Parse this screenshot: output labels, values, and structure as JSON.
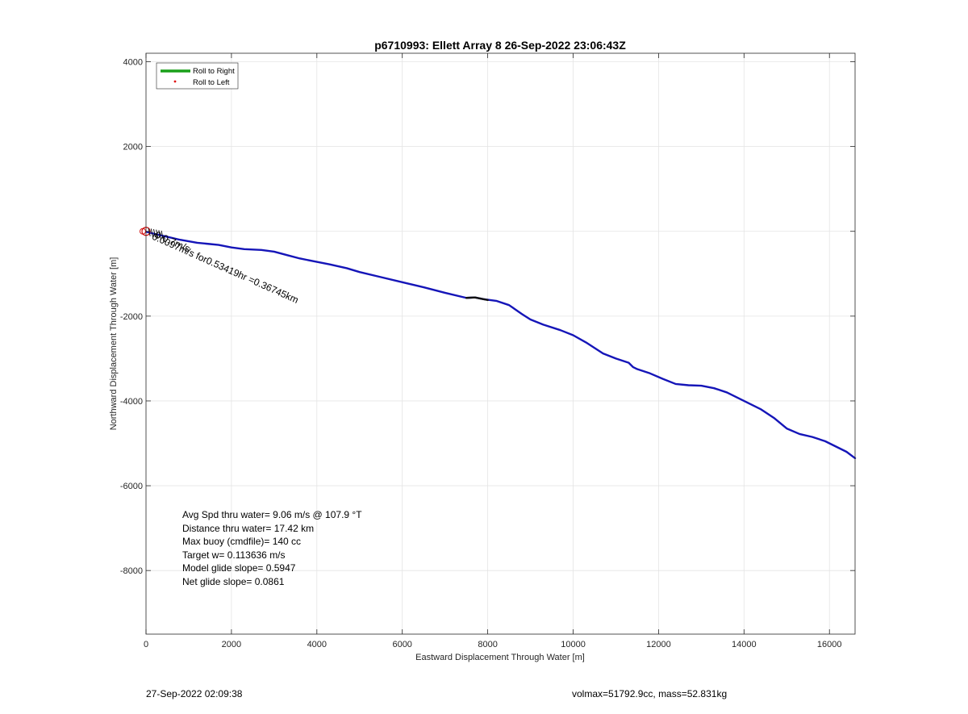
{
  "chart_data": {
    "type": "line",
    "title": "p6710993: Ellett Array 8 26-Sep-2022 23:06:43Z",
    "xlabel": "Eastward Displacement Through Water [m]",
    "ylabel": "Northward Displacement Through Water [m]",
    "xlim": [
      0,
      16600
    ],
    "ylim": [
      -9500,
      4200
    ],
    "xticks": [
      0,
      2000,
      4000,
      6000,
      8000,
      10000,
      12000,
      14000,
      16000
    ],
    "yticks": [
      4000,
      2000,
      0,
      -2000,
      -4000,
      -6000,
      -8000
    ],
    "ytick_labels": [
      "4000",
      "2000",
      "",
      "-2000",
      "-4000",
      "-6000",
      "-8000"
    ],
    "grid": true,
    "legend_position": "top-left",
    "legend": [
      {
        "label": "Roll to Right",
        "color": "#1aa01a",
        "marker": "line"
      },
      {
        "label": "Roll to Left",
        "color": "#e01010",
        "marker": "dot"
      }
    ],
    "series": [
      {
        "color": "#1515b8",
        "x": [
          0,
          200,
          500,
          800,
          1200,
          1500,
          1700,
          2000,
          2300,
          2700,
          3000,
          3300,
          3600,
          4000,
          4300,
          4700,
          5000,
          5500,
          6000,
          6500,
          7000,
          7500,
          7700,
          7900,
          8200,
          8500,
          8800,
          9000,
          9300,
          9700,
          10000,
          10300,
          10700,
          11000,
          11300,
          11400,
          11500,
          11800,
          12100,
          12400,
          12700,
          13000,
          13300,
          13600,
          14000,
          14400,
          14700,
          15000,
          15300,
          15600,
          15900,
          16200,
          16400,
          16600
        ],
        "y": [
          -10,
          -60,
          -130,
          -200,
          -270,
          -300,
          -320,
          -380,
          -420,
          -440,
          -480,
          -560,
          -640,
          -720,
          -780,
          -870,
          -960,
          -1080,
          -1200,
          -1320,
          -1450,
          -1570,
          -1560,
          -1600,
          -1640,
          -1740,
          -1950,
          -2080,
          -2200,
          -2330,
          -2450,
          -2620,
          -2880,
          -3000,
          -3100,
          -3200,
          -3250,
          -3350,
          -3480,
          -3600,
          -3630,
          -3640,
          -3700,
          -3800,
          -4000,
          -4200,
          -4400,
          -4650,
          -4780,
          -4850,
          -4950,
          -5100,
          -5200,
          -5350
        ]
      },
      {
        "color": "#111111",
        "x": [
          7500,
          7700,
          7900,
          8000
        ],
        "y": [
          -1570,
          -1560,
          -1600,
          -1620
        ]
      }
    ],
    "markers": [
      {
        "label": "start",
        "x": 0,
        "y": 0,
        "color": "#d01010",
        "shape": "circle"
      }
    ],
    "annotations": [
      {
        "text": "0.0097m/s for0.53419hr =0.36745km",
        "x": 50,
        "y": -100,
        "angle_deg": 24
      },
      {
        "text": "0.0.7m/s",
        "x": 120,
        "y": -60,
        "angle_deg": 24
      }
    ],
    "stats": [
      "Avg Spd thru water=  9.06 m/s @ 107.9 °T",
      "Distance thru water= 17.42 km",
      "Max buoy (cmdfile)= 140 cc",
      "Target w= 0.113636 m/s",
      "Model glide slope= 0.5947",
      "Net glide slope= 0.0861"
    ]
  },
  "footer": {
    "timestamp": "27-Sep-2022 02:09:38",
    "volmax": "volmax=51792.9cc, mass=52.831kg"
  }
}
